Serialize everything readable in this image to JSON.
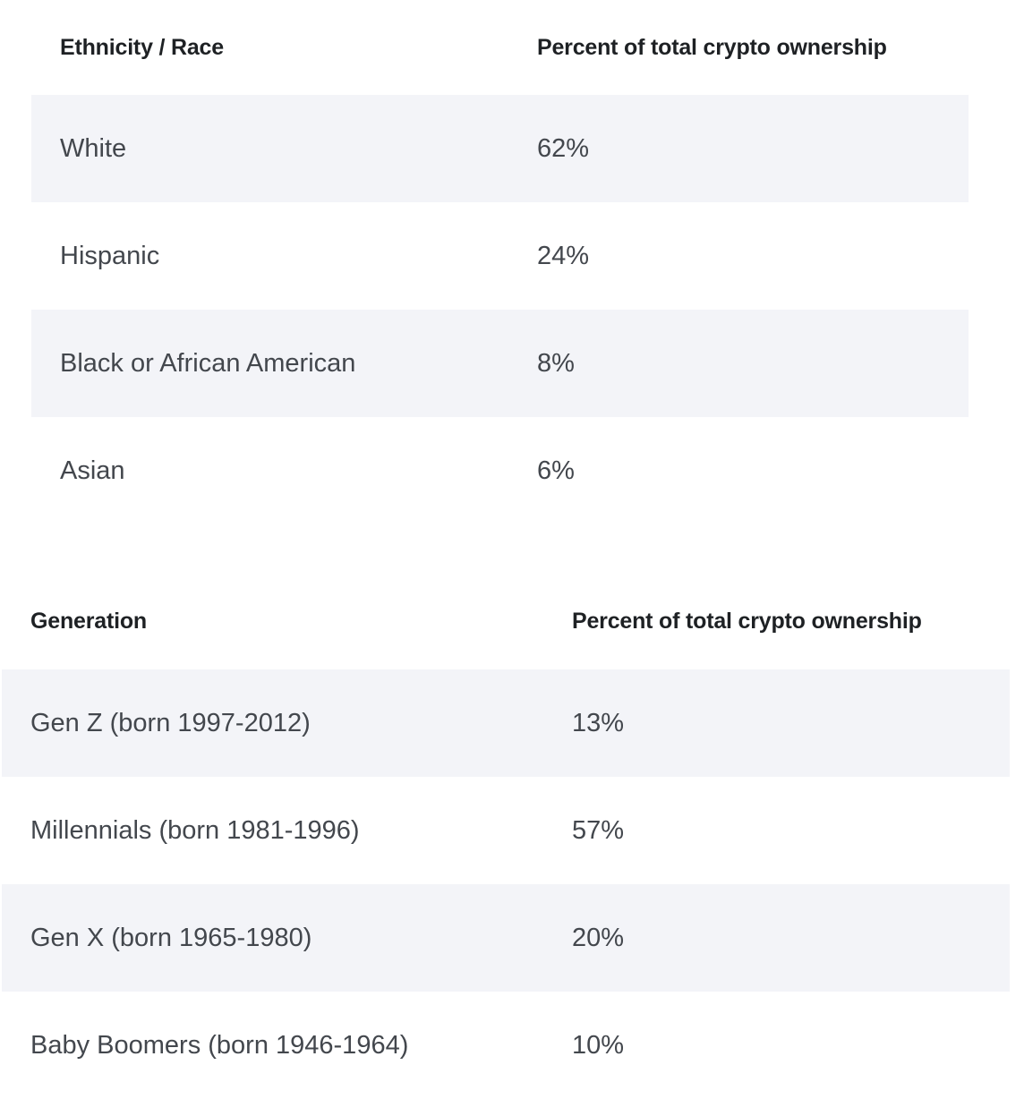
{
  "ethnicity_table": {
    "headers": [
      "Ethnicity / Race",
      "Percent of total crypto ownership"
    ],
    "rows": [
      {
        "label": "White",
        "value": "62%"
      },
      {
        "label": "Hispanic",
        "value": "24%"
      },
      {
        "label": "Black or African American",
        "value": "8%"
      },
      {
        "label": "Asian",
        "value": "6%"
      }
    ]
  },
  "generation_table": {
    "headers": [
      "Generation",
      "Percent of total crypto ownership"
    ],
    "rows": [
      {
        "label": "Gen Z (born 1997-2012)",
        "value": "13%"
      },
      {
        "label": "Millennials (born 1981-1996)",
        "value": "57%"
      },
      {
        "label": "Gen X (born 1965-1980)",
        "value": "20%"
      },
      {
        "label": "Baby Boomers (born 1946-1964)",
        "value": "10%"
      }
    ]
  },
  "colors": {
    "row_shade": "#f3f4f8",
    "header_text": "#1e2124",
    "body_text": "#43474d"
  }
}
